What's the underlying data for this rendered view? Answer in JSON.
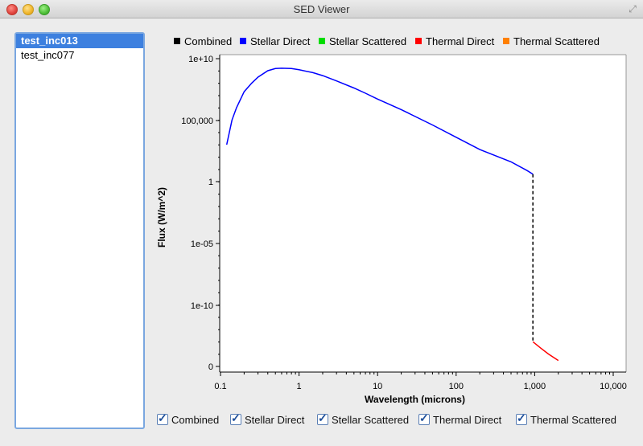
{
  "window": {
    "title": "SED Viewer"
  },
  "list": {
    "items": [
      "test_inc013",
      "test_inc077"
    ],
    "selected": 0
  },
  "chart_data": {
    "type": "line",
    "xlabel": "Wavelength (microns)",
    "ylabel": "Flux (W/m^2)",
    "xscale": "log",
    "yscale": "log",
    "xlim": [
      0.1,
      10000
    ],
    "x_ticks": [
      "0.1",
      "1",
      "10",
      "100",
      "1,000",
      "10,000"
    ],
    "y_ticks": [
      "0",
      "1e-10",
      "1e-05",
      "1",
      "100,000",
      "1e+10"
    ],
    "legend": {
      "placement": "top",
      "entries": [
        {
          "name": "Combined",
          "color": "#000000"
        },
        {
          "name": "Stellar Direct",
          "color": "#0000ff"
        },
        {
          "name": "Stellar Scattered",
          "color": "#00dd00"
        },
        {
          "name": "Thermal Direct",
          "color": "#ff0000"
        },
        {
          "name": "Thermal Scattered",
          "color": "#ff8000"
        }
      ]
    },
    "series": [
      {
        "name": "Stellar Direct",
        "color": "#0000ff",
        "x": [
          0.12,
          0.14,
          0.16,
          0.2,
          0.25,
          0.3,
          0.4,
          0.5,
          0.6,
          0.8,
          1,
          1.5,
          2,
          3,
          5,
          7,
          10,
          20,
          50,
          100,
          200,
          500,
          800,
          950
        ],
        "y": [
          1000,
          100000,
          1000000,
          20000000,
          100000000,
          300000000,
          1000000000,
          1500000000,
          1600000000,
          1500000000,
          1200000000,
          700000000,
          400000000,
          150000000,
          40000000,
          15000000,
          5000000,
          700000,
          40000,
          4000,
          400,
          40,
          8,
          4
        ]
      },
      {
        "name": "Combined",
        "color": "#000000",
        "style": "dashed",
        "x": [
          950,
          950
        ],
        "y": [
          4,
          1e-13
        ]
      },
      {
        "name": "Thermal Direct",
        "color": "#ff0000",
        "x": [
          950,
          1200,
          1500,
          2000
        ],
        "y": [
          1e-13,
          3e-14,
          1e-14,
          3e-15
        ]
      }
    ]
  },
  "checkboxes": [
    {
      "label": "Combined",
      "checked": true
    },
    {
      "label": "Stellar Direct",
      "checked": true
    },
    {
      "label": "Stellar Scattered",
      "checked": true
    },
    {
      "label": "Thermal Direct",
      "checked": true
    },
    {
      "label": "Thermal Scattered",
      "checked": true
    }
  ]
}
